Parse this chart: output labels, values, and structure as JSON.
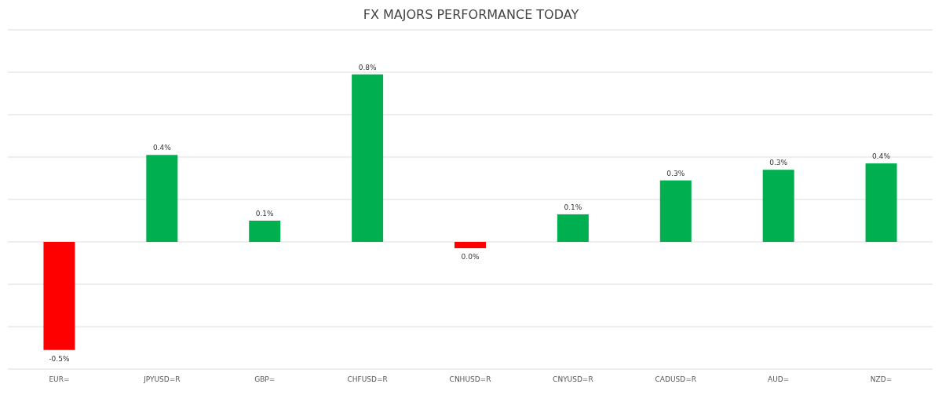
{
  "chart_data": {
    "type": "bar",
    "title": "FX MAJORS PERFORMANCE TODAY",
    "categories": [
      "EUR=",
      "JPYUSD=R",
      "GBP=",
      "CHFUSD=R",
      "CNHUSD=R",
      "CNYUSD=R",
      "CADUSD=R",
      "AUD=",
      "NZD="
    ],
    "values": [
      -0.51,
      0.41,
      0.1,
      0.79,
      -0.03,
      0.13,
      0.29,
      0.34,
      0.37
    ],
    "colors": [
      "#ff0000",
      "#00b050",
      "#00b050",
      "#00b050",
      "#ff0000",
      "#00b050",
      "#00b050",
      "#00b050",
      "#00b050"
    ],
    "value_labels": [
      "-0.5%",
      "0.4%",
      "0.1%",
      "0.8%",
      "0.0%",
      "0.1%",
      "0.3%",
      "0.3%",
      "0.4%"
    ],
    "ylim": [
      -0.6,
      1.0
    ],
    "yticks": [
      {
        "value": -0.6,
        "label": null
      },
      {
        "value": -0.4,
        "label": null
      },
      {
        "value": -0.2,
        "label": null
      },
      {
        "value": 0,
        "label": null
      },
      {
        "value": 0.2,
        "label": null
      },
      {
        "value": 0.4,
        "label": null
      },
      {
        "value": 0.6,
        "label": null
      },
      {
        "value": 0.8,
        "label": null
      },
      {
        "value": 1.0,
        "label": null
      }
    ],
    "grid": "y",
    "tick_labels": "x"
  }
}
